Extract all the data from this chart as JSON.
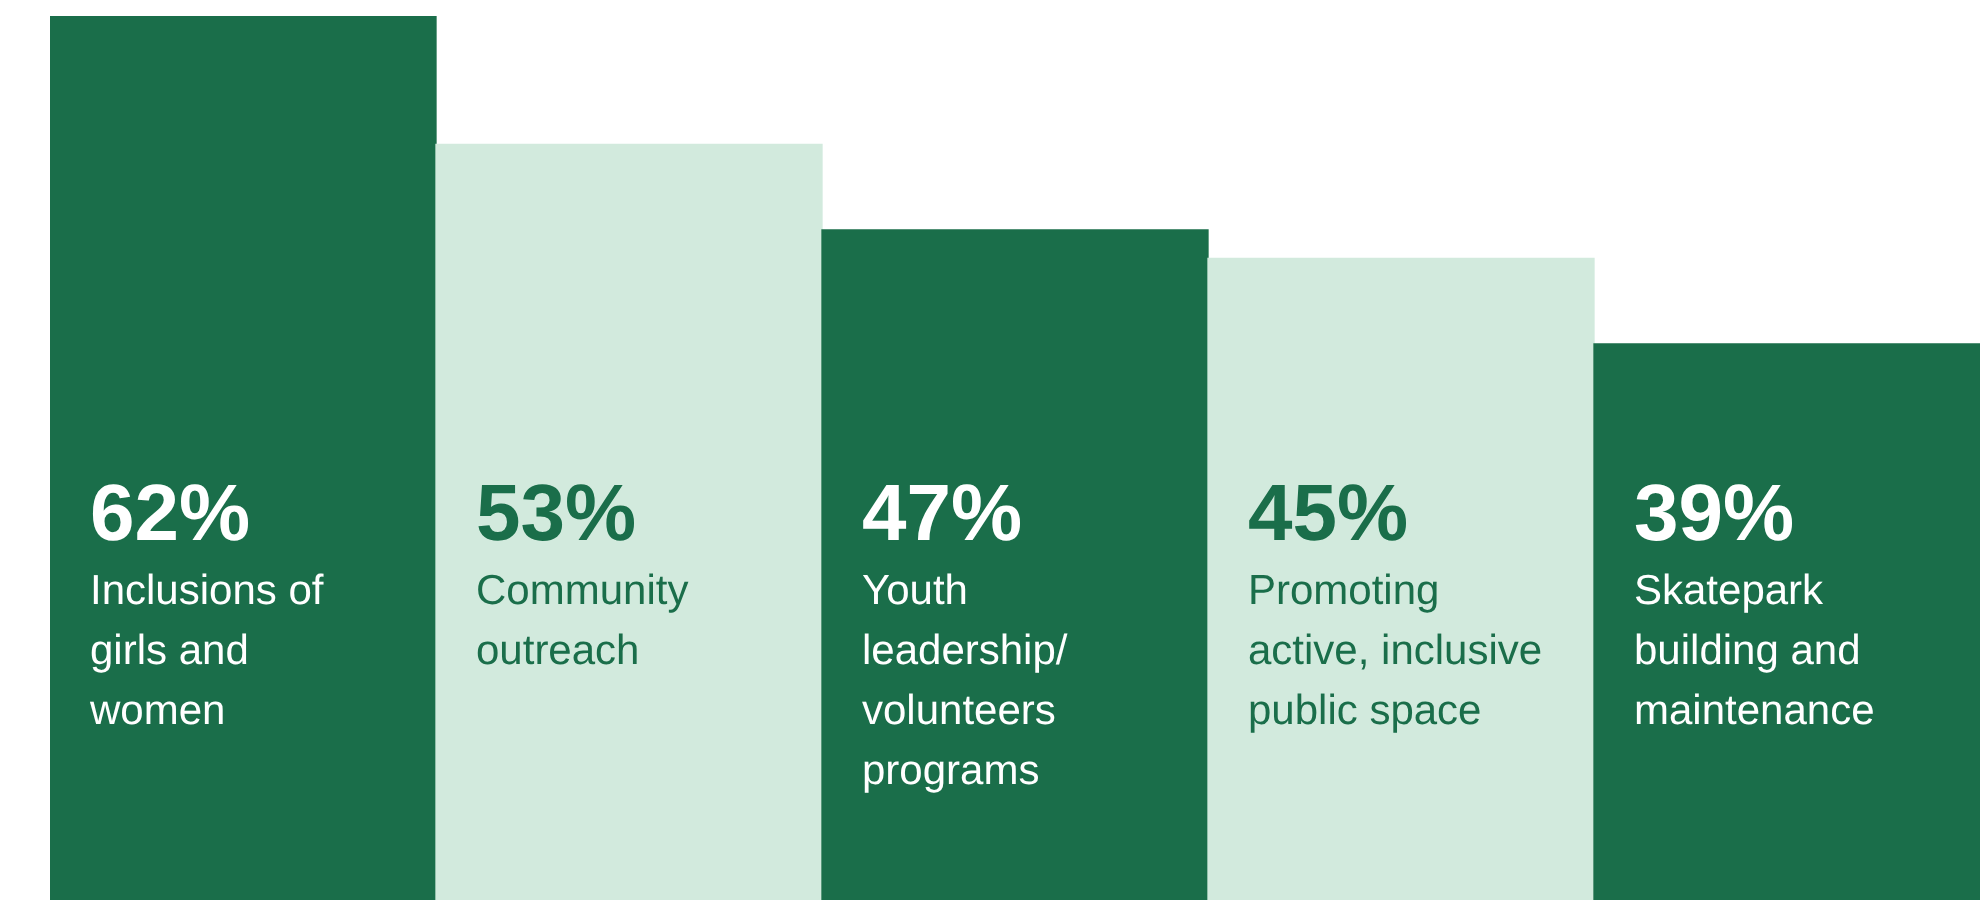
{
  "chart_data": {
    "type": "bar",
    "categories": [
      "Inclusions of girls and women",
      "Community outreach",
      "Youth leadership/ volunteers programs",
      "Promoting active, inclusive public space",
      "Skatepark building and maintenance"
    ],
    "values": [
      62,
      53,
      47,
      45,
      39
    ],
    "colors": [
      "#1a6e4a",
      "#d2eadd",
      "#1a6e4a",
      "#d2eadd",
      "#1a6e4a"
    ],
    "value_labels": [
      "62%",
      "53%",
      "47%",
      "45%",
      "39%"
    ],
    "ylim": [
      0,
      62
    ]
  }
}
